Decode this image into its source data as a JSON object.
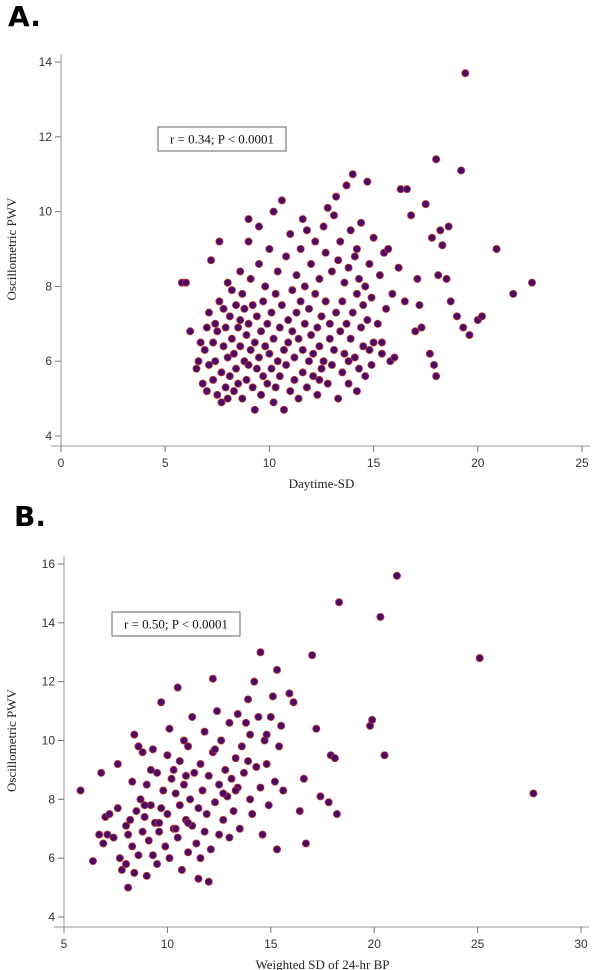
{
  "chart_data": [
    {
      "type": "scatter",
      "panel_label": "A.",
      "xlabel": "Daytime-SD",
      "ylabel": "Oscillometric PWV",
      "xlim": [
        0,
        25
      ],
      "ylim": [
        4,
        14
      ],
      "x_ticks": [
        0,
        5,
        10,
        15,
        20,
        25
      ],
      "y_ticks": [
        4,
        6,
        8,
        10,
        12,
        14
      ],
      "annotation": "r = 0.34; P < 0.0001",
      "marker_fill": "#4a0a6a",
      "marker_edge": "#c0392b",
      "grid": false,
      "points": [
        [
          5.8,
          8.1
        ],
        [
          6.0,
          8.1
        ],
        [
          6.2,
          6.8
        ],
        [
          6.5,
          5.8
        ],
        [
          6.6,
          6.0
        ],
        [
          6.7,
          6.5
        ],
        [
          6.8,
          5.4
        ],
        [
          6.9,
          6.3
        ],
        [
          7.0,
          5.2
        ],
        [
          7.0,
          6.9
        ],
        [
          7.1,
          7.3
        ],
        [
          7.1,
          5.9
        ],
        [
          7.2,
          8.7
        ],
        [
          7.3,
          6.5
        ],
        [
          7.3,
          5.5
        ],
        [
          7.4,
          6.0
        ],
        [
          7.4,
          7.0
        ],
        [
          7.5,
          5.1
        ],
        [
          7.5,
          6.8
        ],
        [
          7.6,
          7.6
        ],
        [
          7.6,
          9.2
        ],
        [
          7.7,
          4.9
        ],
        [
          7.7,
          5.7
        ],
        [
          7.8,
          6.4
        ],
        [
          7.8,
          7.4
        ],
        [
          7.9,
          5.3
        ],
        [
          7.9,
          6.9
        ],
        [
          8.0,
          5.0
        ],
        [
          8.0,
          6.1
        ],
        [
          8.0,
          8.1
        ],
        [
          8.1,
          7.2
        ],
        [
          8.1,
          5.6
        ],
        [
          8.2,
          6.6
        ],
        [
          8.2,
          7.9
        ],
        [
          8.3,
          5.2
        ],
        [
          8.3,
          6.2
        ],
        [
          8.4,
          7.5
        ],
        [
          8.4,
          5.8
        ],
        [
          8.5,
          6.9
        ],
        [
          8.5,
          5.4
        ],
        [
          8.6,
          7.1
        ],
        [
          8.6,
          6.4
        ],
        [
          8.7,
          5.0
        ],
        [
          8.7,
          7.8
        ],
        [
          8.8,
          6.0
        ],
        [
          8.8,
          7.4
        ],
        [
          8.9,
          5.5
        ],
        [
          8.9,
          6.7
        ],
        [
          9.0,
          9.8
        ],
        [
          9.0,
          5.9
        ],
        [
          9.0,
          7.0
        ],
        [
          9.1,
          6.3
        ],
        [
          9.1,
          8.2
        ],
        [
          9.2,
          5.3
        ],
        [
          9.2,
          7.5
        ],
        [
          9.3,
          6.5
        ],
        [
          9.3,
          4.7
        ],
        [
          9.4,
          5.8
        ],
        [
          9.4,
          7.2
        ],
        [
          9.5,
          6.1
        ],
        [
          9.5,
          8.6
        ],
        [
          9.5,
          9.6
        ],
        [
          9.6,
          5.1
        ],
        [
          9.6,
          6.8
        ],
        [
          9.7,
          7.6
        ],
        [
          9.7,
          5.6
        ],
        [
          9.8,
          6.4
        ],
        [
          9.8,
          8.0
        ],
        [
          9.9,
          5.4
        ],
        [
          9.9,
          7.0
        ],
        [
          10.0,
          6.2
        ],
        [
          10.0,
          9.0
        ],
        [
          10.1,
          5.8
        ],
        [
          10.1,
          7.3
        ],
        [
          10.2,
          6.6
        ],
        [
          10.2,
          4.9
        ],
        [
          10.3,
          7.8
        ],
        [
          10.3,
          5.3
        ],
        [
          10.4,
          6.0
        ],
        [
          10.4,
          8.4
        ],
        [
          10.5,
          6.9
        ],
        [
          10.5,
          5.6
        ],
        [
          10.6,
          7.5
        ],
        [
          10.6,
          10.3
        ],
        [
          10.7,
          6.3
        ],
        [
          10.7,
          4.7
        ],
        [
          10.8,
          8.8
        ],
        [
          10.8,
          5.9
        ],
        [
          10.9,
          7.1
        ],
        [
          10.9,
          6.5
        ],
        [
          11.0,
          5.2
        ],
        [
          11.0,
          9.4
        ],
        [
          11.1,
          6.8
        ],
        [
          11.1,
          7.9
        ],
        [
          11.2,
          5.5
        ],
        [
          11.2,
          6.1
        ],
        [
          11.3,
          8.3
        ],
        [
          11.3,
          7.3
        ],
        [
          11.4,
          5.0
        ],
        [
          11.4,
          6.6
        ],
        [
          11.5,
          9.0
        ],
        [
          11.5,
          7.6
        ],
        [
          11.6,
          5.7
        ],
        [
          11.6,
          6.3
        ],
        [
          11.7,
          8.0
        ],
        [
          11.7,
          7.0
        ],
        [
          11.8,
          5.3
        ],
        [
          11.8,
          9.5
        ],
        [
          11.9,
          6.0
        ],
        [
          11.9,
          7.4
        ],
        [
          12.0,
          6.7
        ],
        [
          12.0,
          8.6
        ],
        [
          12.1,
          5.6
        ],
        [
          12.1,
          6.2
        ],
        [
          12.2,
          7.8
        ],
        [
          12.2,
          9.2
        ],
        [
          12.3,
          5.1
        ],
        [
          12.3,
          6.9
        ],
        [
          12.4,
          8.2
        ],
        [
          12.4,
          6.4
        ],
        [
          12.5,
          7.2
        ],
        [
          12.5,
          5.8
        ],
        [
          12.6,
          9.6
        ],
        [
          12.6,
          6.0
        ],
        [
          12.7,
          7.6
        ],
        [
          12.7,
          8.9
        ],
        [
          12.8,
          5.4
        ],
        [
          12.8,
          10.1
        ],
        [
          12.9,
          6.6
        ],
        [
          12.9,
          7.0
        ],
        [
          13.0,
          8.4
        ],
        [
          13.0,
          5.9
        ],
        [
          13.1,
          9.9
        ],
        [
          13.1,
          6.3
        ],
        [
          13.2,
          7.3
        ],
        [
          13.2,
          10.4
        ],
        [
          13.3,
          5.0
        ],
        [
          13.3,
          8.7
        ],
        [
          13.4,
          6.8
        ],
        [
          13.4,
          9.2
        ],
        [
          13.5,
          7.6
        ],
        [
          13.5,
          5.7
        ],
        [
          13.6,
          8.1
        ],
        [
          13.6,
          6.2
        ],
        [
          13.7,
          10.7
        ],
        [
          13.7,
          7.0
        ],
        [
          13.8,
          8.5
        ],
        [
          13.8,
          5.4
        ],
        [
          13.9,
          9.5
        ],
        [
          13.9,
          6.6
        ],
        [
          14.0,
          11.0
        ],
        [
          14.0,
          7.3
        ],
        [
          14.1,
          8.8
        ],
        [
          14.1,
          6.1
        ],
        [
          14.2,
          9.0
        ],
        [
          14.2,
          7.8
        ],
        [
          14.3,
          5.8
        ],
        [
          14.3,
          8.2
        ],
        [
          14.4,
          6.9
        ],
        [
          14.4,
          9.7
        ],
        [
          14.5,
          7.5
        ],
        [
          14.5,
          6.4
        ],
        [
          14.6,
          8.0
        ],
        [
          14.6,
          5.6
        ],
        [
          14.7,
          10.8
        ],
        [
          14.7,
          7.1
        ],
        [
          14.8,
          6.3
        ],
        [
          14.8,
          8.6
        ],
        [
          14.9,
          5.9
        ],
        [
          14.9,
          7.7
        ],
        [
          15.0,
          9.3
        ],
        [
          15.0,
          6.5
        ],
        [
          15.2,
          7.0
        ],
        [
          15.3,
          8.3
        ],
        [
          15.4,
          6.2
        ],
        [
          15.5,
          8.9
        ],
        [
          15.6,
          7.4
        ],
        [
          15.7,
          9.0
        ],
        [
          15.8,
          6.0
        ],
        [
          15.9,
          7.8
        ],
        [
          16.0,
          6.1
        ],
        [
          16.2,
          8.5
        ],
        [
          16.3,
          10.6
        ],
        [
          16.5,
          7.6
        ],
        [
          16.6,
          10.6
        ],
        [
          16.8,
          9.9
        ],
        [
          17.0,
          6.8
        ],
        [
          17.1,
          8.2
        ],
        [
          17.2,
          7.5
        ],
        [
          17.3,
          6.9
        ],
        [
          17.5,
          10.2
        ],
        [
          17.7,
          6.2
        ],
        [
          17.8,
          9.3
        ],
        [
          17.9,
          5.9
        ],
        [
          18.0,
          11.4
        ],
        [
          18.0,
          5.6
        ],
        [
          18.1,
          8.3
        ],
        [
          18.2,
          9.5
        ],
        [
          18.3,
          9.1
        ],
        [
          18.5,
          8.2
        ],
        [
          18.6,
          9.6
        ],
        [
          18.7,
          7.6
        ],
        [
          19.0,
          7.2
        ],
        [
          19.2,
          11.1
        ],
        [
          19.3,
          6.9
        ],
        [
          19.4,
          13.7
        ],
        [
          19.6,
          6.7
        ],
        [
          20.0,
          7.1
        ],
        [
          20.2,
          7.2
        ],
        [
          20.9,
          9.0
        ],
        [
          21.7,
          7.8
        ],
        [
          22.6,
          8.1
        ],
        [
          12.4,
          5.5
        ],
        [
          13.8,
          6.0
        ],
        [
          11.6,
          9.8
        ],
        [
          10.2,
          10.0
        ],
        [
          9.0,
          9.2
        ],
        [
          8.6,
          8.4
        ],
        [
          15.4,
          6.5
        ],
        [
          14.2,
          5.2
        ]
      ]
    },
    {
      "type": "scatter",
      "panel_label": "B.",
      "xlabel": "Weighted SD of 24-hr BP",
      "ylabel": "Oscillometric PWV",
      "xlim": [
        5,
        30
      ],
      "ylim": [
        4,
        16
      ],
      "x_ticks": [
        5,
        10,
        15,
        20,
        25,
        30
      ],
      "y_ticks": [
        4,
        6,
        8,
        10,
        12,
        14,
        16
      ],
      "annotation": "r = 0.50; P < 0.0001",
      "marker_fill": "#4a0a6a",
      "marker_edge": "#c0392b",
      "grid": false,
      "points": [
        [
          5.8,
          8.3
        ],
        [
          6.4,
          5.9
        ],
        [
          6.7,
          6.8
        ],
        [
          6.8,
          8.9
        ],
        [
          6.9,
          6.5
        ],
        [
          7.0,
          7.4
        ],
        [
          7.1,
          6.8
        ],
        [
          7.2,
          7.5
        ],
        [
          7.4,
          6.7
        ],
        [
          7.6,
          7.7
        ],
        [
          7.6,
          9.2
        ],
        [
          7.7,
          6.0
        ],
        [
          7.8,
          5.6
        ],
        [
          8.0,
          7.1
        ],
        [
          8.0,
          5.8
        ],
        [
          8.1,
          6.8
        ],
        [
          8.1,
          5.0
        ],
        [
          8.2,
          7.3
        ],
        [
          8.3,
          8.6
        ],
        [
          8.3,
          6.4
        ],
        [
          8.4,
          10.2
        ],
        [
          8.4,
          5.5
        ],
        [
          8.5,
          7.6
        ],
        [
          8.6,
          9.8
        ],
        [
          8.6,
          6.1
        ],
        [
          8.7,
          8.0
        ],
        [
          8.8,
          6.9
        ],
        [
          8.8,
          9.6
        ],
        [
          8.9,
          7.4
        ],
        [
          9.0,
          5.4
        ],
        [
          9.0,
          8.5
        ],
        [
          9.1,
          6.6
        ],
        [
          9.2,
          7.8
        ],
        [
          9.2,
          9.0
        ],
        [
          9.3,
          6.1
        ],
        [
          9.4,
          7.2
        ],
        [
          9.5,
          8.9
        ],
        [
          9.5,
          5.8
        ],
        [
          9.6,
          6.9
        ],
        [
          9.7,
          11.3
        ],
        [
          9.7,
          7.7
        ],
        [
          9.8,
          8.3
        ],
        [
          9.9,
          6.4
        ],
        [
          10.0,
          9.5
        ],
        [
          10.0,
          7.5
        ],
        [
          10.1,
          10.4
        ],
        [
          10.1,
          6.0
        ],
        [
          10.2,
          8.7
        ],
        [
          10.3,
          7.0
        ],
        [
          10.3,
          9.0
        ],
        [
          10.4,
          8.2
        ],
        [
          10.5,
          11.8
        ],
        [
          10.5,
          6.7
        ],
        [
          10.6,
          9.3
        ],
        [
          10.6,
          7.8
        ],
        [
          10.7,
          5.6
        ],
        [
          10.8,
          8.5
        ],
        [
          10.8,
          10.0
        ],
        [
          10.9,
          7.3
        ],
        [
          11.0,
          6.2
        ],
        [
          11.0,
          9.8
        ],
        [
          11.1,
          8.0
        ],
        [
          11.2,
          7.1
        ],
        [
          11.2,
          10.8
        ],
        [
          11.3,
          8.9
        ],
        [
          11.4,
          6.5
        ],
        [
          11.5,
          7.7
        ],
        [
          11.5,
          5.3
        ],
        [
          11.6,
          9.2
        ],
        [
          11.7,
          8.3
        ],
        [
          11.8,
          6.9
        ],
        [
          11.8,
          10.3
        ],
        [
          11.9,
          7.5
        ],
        [
          12.0,
          5.2
        ],
        [
          12.0,
          8.8
        ],
        [
          12.1,
          6.3
        ],
        [
          12.2,
          9.6
        ],
        [
          12.2,
          12.1
        ],
        [
          12.3,
          7.9
        ],
        [
          12.4,
          11.0
        ],
        [
          12.5,
          8.5
        ],
        [
          12.5,
          6.8
        ],
        [
          12.6,
          10.0
        ],
        [
          12.7,
          7.3
        ],
        [
          12.8,
          9.0
        ],
        [
          12.9,
          8.1
        ],
        [
          13.0,
          10.6
        ],
        [
          13.0,
          6.7
        ],
        [
          13.1,
          8.7
        ],
        [
          13.2,
          7.6
        ],
        [
          13.3,
          9.4
        ],
        [
          13.4,
          10.9
        ],
        [
          13.4,
          8.4
        ],
        [
          13.5,
          7.0
        ],
        [
          13.6,
          9.8
        ],
        [
          13.7,
          8.9
        ],
        [
          13.8,
          10.6
        ],
        [
          13.9,
          11.4
        ],
        [
          14.0,
          8.0
        ],
        [
          14.0,
          10.2
        ],
        [
          14.1,
          7.5
        ],
        [
          14.2,
          12.0
        ],
        [
          14.3,
          9.1
        ],
        [
          14.4,
          10.8
        ],
        [
          14.5,
          13.0
        ],
        [
          14.5,
          8.4
        ],
        [
          14.6,
          6.8
        ],
        [
          14.7,
          10.0
        ],
        [
          14.8,
          9.2
        ],
        [
          14.9,
          7.8
        ],
        [
          15.0,
          10.8
        ],
        [
          15.1,
          11.5
        ],
        [
          15.2,
          8.6
        ],
        [
          15.3,
          12.4
        ],
        [
          15.3,
          6.3
        ],
        [
          15.4,
          9.8
        ],
        [
          15.5,
          10.5
        ],
        [
          15.6,
          8.3
        ],
        [
          15.9,
          11.6
        ],
        [
          16.1,
          11.3
        ],
        [
          16.4,
          7.6
        ],
        [
          16.6,
          8.7
        ],
        [
          16.7,
          6.5
        ],
        [
          17.0,
          12.9
        ],
        [
          17.2,
          10.4
        ],
        [
          17.4,
          8.1
        ],
        [
          17.8,
          7.9
        ],
        [
          17.9,
          9.5
        ],
        [
          18.1,
          9.4
        ],
        [
          18.2,
          7.5
        ],
        [
          18.3,
          14.7
        ],
        [
          19.8,
          10.5
        ],
        [
          19.9,
          10.7
        ],
        [
          20.3,
          14.2
        ],
        [
          20.5,
          9.5
        ],
        [
          21.1,
          15.6
        ],
        [
          25.1,
          12.8
        ],
        [
          27.7,
          8.2
        ],
        [
          9.3,
          9.7
        ],
        [
          10.9,
          8.8
        ],
        [
          12.3,
          9.7
        ],
        [
          11.0,
          7.2
        ],
        [
          13.9,
          9.3
        ],
        [
          14.8,
          10.2
        ],
        [
          9.6,
          7.2
        ],
        [
          8.9,
          7.8
        ],
        [
          11.6,
          6.0
        ],
        [
          12.7,
          8.2
        ],
        [
          13.3,
          8.3
        ],
        [
          10.4,
          7.0
        ]
      ]
    }
  ]
}
